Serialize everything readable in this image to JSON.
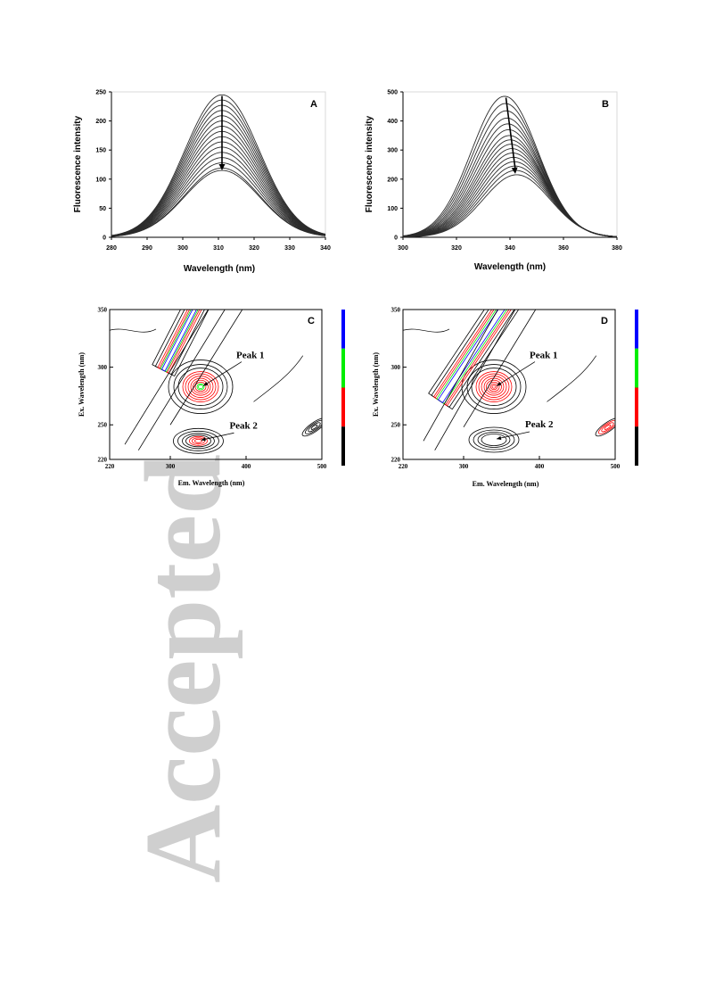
{
  "watermark": {
    "text": "Accepted"
  },
  "chart_data": [
    {
      "panel": "A",
      "type": "line",
      "xlabel": "Wavelength (nm)",
      "ylabel": "Fluorescence intensity",
      "xlim": [
        280,
        340
      ],
      "ylim": [
        0,
        250
      ],
      "x_ticks": [
        "280",
        "290",
        "300",
        "310",
        "320",
        "330",
        "340"
      ],
      "y_ticks": [
        "0",
        "50",
        "100",
        "150",
        "200",
        "250"
      ],
      "peak_wavelength": 311,
      "width_nm": 10.5,
      "peak_intensities": [
        245,
        236,
        227,
        218,
        209,
        200,
        191,
        182,
        173,
        164,
        155,
        146,
        137,
        128,
        119,
        115
      ],
      "arrow": {
        "direction": "down",
        "from": 243,
        "to": 115
      },
      "line_color": "#2b2b2b"
    },
    {
      "panel": "B",
      "type": "line",
      "xlabel": "Wavelength (nm)",
      "ylabel": "Fluorescence intensity",
      "xlim": [
        300,
        380
      ],
      "ylim": [
        0,
        500
      ],
      "x_ticks": [
        "300",
        "320",
        "340",
        "360",
        "380"
      ],
      "y_ticks": [
        "0",
        "100",
        "200",
        "300",
        "400",
        "500"
      ],
      "peak_wavelengths": [
        338,
        338.3,
        338.6,
        338.9,
        339.2,
        339.5,
        339.8,
        340.1,
        340.4,
        340.7,
        341,
        341.3,
        341.6,
        341.9,
        342.2,
        342.5
      ],
      "width_nm": 12.5,
      "peak_intensities": [
        485,
        460,
        435,
        410,
        390,
        370,
        350,
        335,
        320,
        305,
        290,
        275,
        260,
        245,
        230,
        215
      ],
      "arrow": {
        "direction": "down",
        "from": [
          338.5,
          480
        ],
        "to": [
          342,
          218
        ]
      },
      "line_color": "#2b2b2b"
    },
    {
      "panel": "C",
      "type": "heatmap",
      "xlabel": "Em. Wavelength (nm)",
      "ylabel": "Ex. Wavelength (nm)",
      "xlim": [
        220,
        500
      ],
      "ylim": [
        220,
        350
      ],
      "x_ticks": [
        "220",
        "300",
        "400",
        "500"
      ],
      "y_ticks": [
        "220",
        "250",
        "300",
        "350"
      ],
      "annotations": [
        "Peak 1",
        "Peak 2"
      ],
      "peaks": [
        {
          "label": "Peak 1",
          "em": 340,
          "ex": 283
        },
        {
          "label": "Peak 2",
          "em": 337,
          "ex": 236
        }
      ],
      "colorbar_colors": [
        "#0000ff",
        "#00ee00",
        "#ff0000",
        "#000000"
      ]
    },
    {
      "panel": "D",
      "type": "heatmap",
      "xlabel": "Em. Wavelength (nm)",
      "ylabel": "Ex. Wavelength (nm)",
      "xlim": [
        220,
        500
      ],
      "ylim": [
        220,
        350
      ],
      "x_ticks": [
        "220",
        "300",
        "400",
        "500"
      ],
      "y_ticks": [
        "220",
        "250",
        "300",
        "350"
      ],
      "annotations": [
        "Peak 1",
        "Peak 2"
      ],
      "peaks": [
        {
          "label": "Peak 1",
          "em": 340,
          "ex": 283
        },
        {
          "label": "Peak 2",
          "em": 340,
          "ex": 237
        }
      ],
      "colorbar_colors": [
        "#0000ff",
        "#00ee00",
        "#ff0000",
        "#000000"
      ]
    }
  ]
}
